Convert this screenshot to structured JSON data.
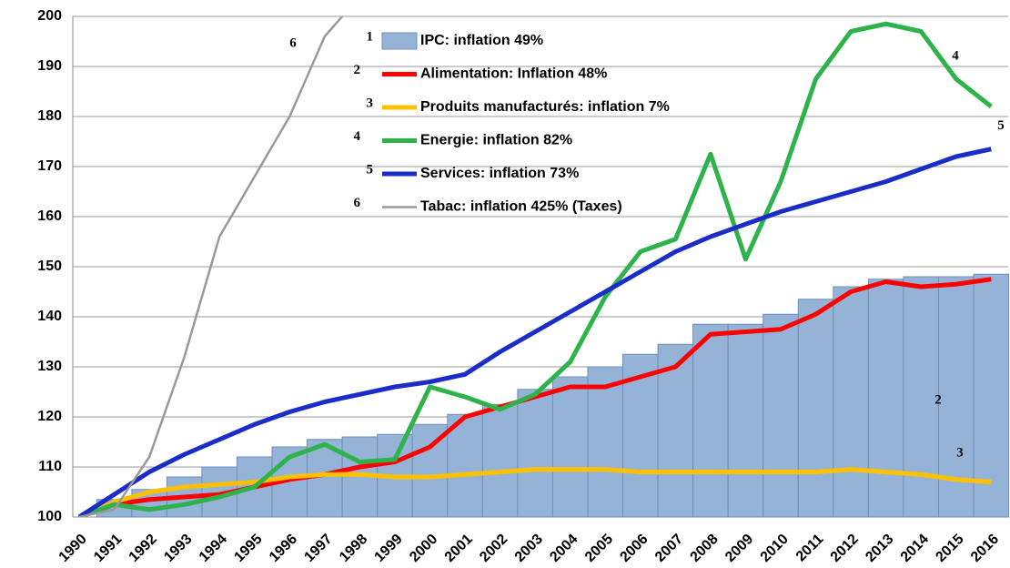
{
  "chart_data": {
    "type": "bar+line",
    "categories": [
      "1990",
      "1991",
      "1992",
      "1993",
      "1994",
      "1995",
      "1996",
      "1997",
      "1998",
      "1999",
      "2000",
      "2001",
      "2002",
      "2003",
      "2004",
      "2005",
      "2006",
      "2007",
      "2008",
      "2009",
      "2010",
      "2011",
      "2012",
      "2013",
      "2014",
      "2015",
      "2016"
    ],
    "ylim": [
      100,
      200
    ],
    "yticks": [
      100,
      110,
      120,
      130,
      140,
      150,
      160,
      170,
      180,
      190,
      200
    ],
    "grid": true,
    "series": [
      {
        "name": "IPC: inflation 49%",
        "label": "1",
        "kind": "bar",
        "color": "#95b3d7",
        "values": [
          100,
          103.5,
          105.5,
          108,
          110,
          112,
          114,
          115.5,
          116,
          116.5,
          118.5,
          120.5,
          122.5,
          125.5,
          128,
          130,
          132.5,
          134.5,
          138.5,
          138.5,
          140.5,
          143.5,
          146,
          147.5,
          148,
          148,
          148.5
        ]
      },
      {
        "name": "Alimentation: Inflation 48%",
        "label": "2",
        "kind": "line",
        "color": "#ff0000",
        "values": [
          100,
          102.5,
          103.5,
          104,
          104.5,
          106,
          107.5,
          108.5,
          110,
          111,
          114,
          120,
          122,
          124,
          126,
          126,
          128,
          130,
          136.5,
          137,
          137.5,
          140.5,
          145,
          147,
          146,
          146.5,
          147.5
        ]
      },
      {
        "name": "Produits manufacturés: inflation 7%",
        "label": "3",
        "kind": "line",
        "color": "#ffc000",
        "values": [
          100,
          103,
          105,
          106,
          106.5,
          107,
          108,
          108.5,
          108.5,
          108,
          108,
          108.5,
          109,
          109.5,
          109.5,
          109.5,
          109,
          109,
          109,
          109,
          109,
          109,
          109.5,
          109,
          108.5,
          107.5,
          107
        ]
      },
      {
        "name": "Energie: inflation 82%",
        "label": "4",
        "kind": "line",
        "color": "#2db34a",
        "values": [
          100,
          102.5,
          101.5,
          102.5,
          104,
          106,
          112,
          114.5,
          111,
          111.5,
          126,
          124,
          121.5,
          124.5,
          131,
          144,
          153,
          155.5,
          172.5,
          151.5,
          167,
          187.5,
          197,
          198.5,
          197,
          187.5,
          182
        ]
      },
      {
        "name": "Services: inflation 73%",
        "label": "5",
        "kind": "line",
        "color": "#1a2dc8",
        "values": [
          100,
          104.5,
          109,
          112.5,
          115.5,
          118.5,
          121,
          123,
          124.5,
          126,
          127,
          128.5,
          133,
          137,
          141,
          145,
          149,
          153,
          156,
          158.5,
          161,
          163,
          165,
          167,
          169.5,
          172,
          173.5
        ]
      },
      {
        "name": "Tabac: inflation 425% (Taxes)",
        "label": "6",
        "kind": "line",
        "color": "#999999",
        "values": [
          100,
          101.5,
          112,
          132,
          156,
          168,
          180,
          196,
          204,
          null,
          null,
          null,
          null,
          null,
          null,
          null,
          null,
          null,
          null,
          null,
          null,
          null,
          null,
          null,
          null,
          null,
          null
        ]
      }
    ]
  }
}
